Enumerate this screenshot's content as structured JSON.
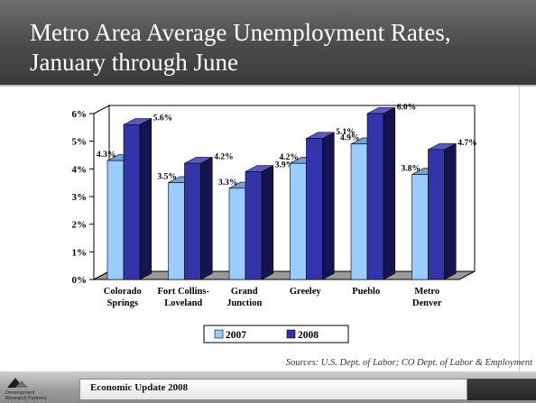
{
  "slide": {
    "title": "Metro Area Average Unemployment Rates, January through June",
    "source": "Sources:  U.S. Dept. of Labor; CO Dept. of Labor & Employment",
    "footer": "Economic Update 2008",
    "logo_text": [
      "Development",
      "Research Partners"
    ]
  },
  "chart_data": {
    "type": "bar",
    "categories": [
      [
        "Colorado",
        "Springs"
      ],
      [
        "Fort Collins-",
        "Loveland"
      ],
      [
        "Grand",
        "Junction"
      ],
      [
        "Greeley"
      ],
      [
        "Pueblo"
      ],
      [
        "Metro",
        "Denver"
      ]
    ],
    "series": [
      {
        "name": "2007",
        "values": [
          4.3,
          3.5,
          3.3,
          4.2,
          4.9,
          3.8
        ],
        "labels": [
          "4.3%",
          "3.5%",
          "3.3%",
          "4.2%",
          "4.9%",
          "3.8%"
        ],
        "color": "#99ccff"
      },
      {
        "name": "2008",
        "values": [
          5.6,
          4.2,
          3.9,
          5.1,
          6.0,
          4.7
        ],
        "labels": [
          "5.6%",
          "4.2%",
          "3.9%",
          "5.1%",
          "6.0%",
          "4.7%"
        ],
        "color": "#3333aa"
      }
    ],
    "yticks": [
      "0%",
      "1%",
      "2%",
      "3%",
      "4%",
      "5%",
      "6%"
    ],
    "ylim": [
      0,
      6
    ],
    "legend_position": "bottom",
    "three_d": true,
    "colors": {
      "bar2007_side": "#6f8fc0",
      "bar2008_side": "#141450",
      "bar2008_top": "#5a5ab8",
      "bar2007_top": "#7aa0d0"
    }
  }
}
